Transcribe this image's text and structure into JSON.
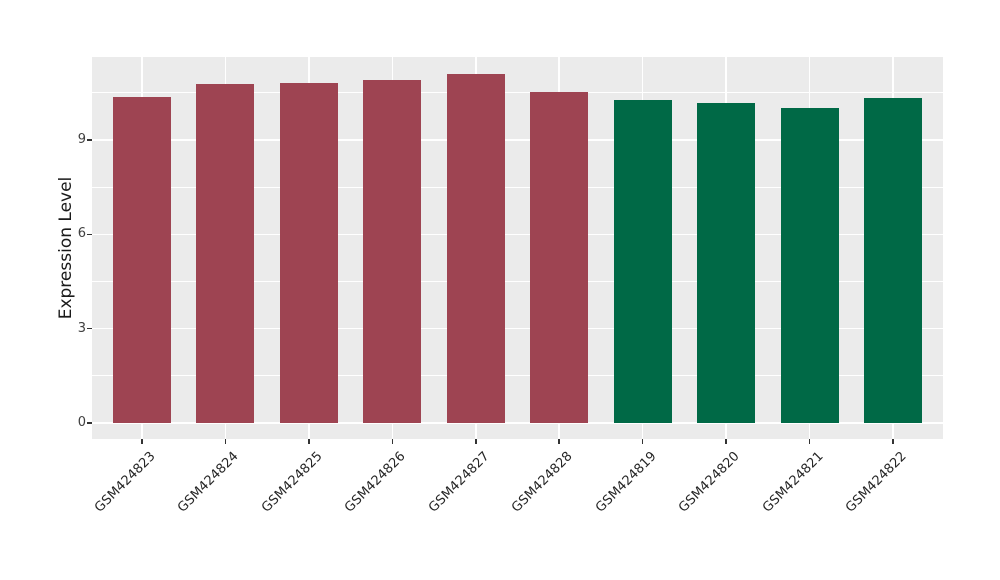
{
  "figure": {
    "background": "#ffffff"
  },
  "chart_data": {
    "type": "bar",
    "title": "",
    "xlabel": "",
    "ylabel": "Expression Level",
    "categories": [
      "GSM424823",
      "GSM424824",
      "GSM424825",
      "GSM424826",
      "GSM424827",
      "GSM424828",
      "GSM424819",
      "GSM424820",
      "GSM424821",
      "GSM424822"
    ],
    "values": [
      10.36,
      10.78,
      10.8,
      10.9,
      11.11,
      10.52,
      10.26,
      10.17,
      10.03,
      10.35
    ],
    "bar_colors": [
      "#9E4452",
      "#9E4452",
      "#9E4452",
      "#9E4452",
      "#9E4452",
      "#9E4452",
      "#006946",
      "#006946",
      "#006946",
      "#006946"
    ],
    "groups": [
      "red-group",
      "red-group",
      "red-group",
      "red-group",
      "red-group",
      "red-group",
      "green-group",
      "green-group",
      "green-group",
      "green-group"
    ],
    "yticks": [
      0,
      3,
      6,
      9
    ],
    "ytick_labels": [
      "0",
      "3",
      "6",
      "9"
    ],
    "y_minor_gridlines": [
      1.5,
      4.5,
      7.5,
      10.5
    ],
    "ylim": [
      -0.51,
      11.64
    ],
    "legend_position": "none",
    "grid": "white major and minor horizontal lines, white vertical lines at category centers",
    "panel_background": "#EBEBEB",
    "grid_color": "#FFFFFF"
  },
  "style": {
    "accent_red": "#9E4452",
    "accent_green": "#006946",
    "panel_bg": "#EBEBEB",
    "grid_color": "#FFFFFF",
    "tick_label_color": "#404040",
    "x_label_color": "#262626",
    "axis_title_color": "#1a1a1a"
  }
}
